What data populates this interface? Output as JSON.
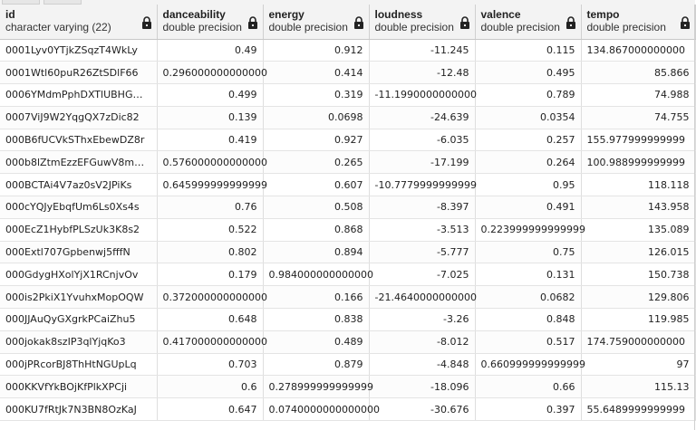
{
  "columns": [
    {
      "name": "id",
      "type": "character varying (22)"
    },
    {
      "name": "danceability",
      "type": "double precision"
    },
    {
      "name": "energy",
      "type": "double precision"
    },
    {
      "name": "loudness",
      "type": "double precision"
    },
    {
      "name": "valence",
      "type": "double precision"
    },
    {
      "name": "tempo",
      "type": "double precision"
    }
  ],
  "rows": [
    [
      "0001Lyv0YTjkZSqzT4WkLy",
      "0.49",
      "0.912",
      "-11.245",
      "0.115",
      "134.867000000000"
    ],
    [
      "0001Wtl60puR26ZtSDlF66",
      "0.296000000000000",
      "0.414",
      "-12.48",
      "0.495",
      "85.866"
    ],
    [
      "0006YMdmPphDXTlUBHG…",
      "0.499",
      "0.319",
      "-11.1990000000000",
      "0.789",
      "74.988"
    ],
    [
      "0007ViJ9W2YqgQX7zDic82",
      "0.139",
      "0.0698",
      "-24.639",
      "0.0354",
      "74.755"
    ],
    [
      "000B6fUCVkSThxEbewDZ8r",
      "0.419",
      "0.927",
      "-6.035",
      "0.257",
      "155.977999999999"
    ],
    [
      "000b8lZtmEzzEFGuwV8m…",
      "0.576000000000000",
      "0.265",
      "-17.199",
      "0.264",
      "100.988999999999"
    ],
    [
      "000BCTAi4V7az0sV2JPiKs",
      "0.645999999999999",
      "0.607",
      "-10.7779999999999",
      "0.95",
      "118.118"
    ],
    [
      "000cYQJyEbqfUm6Ls0Xs4s",
      "0.76",
      "0.508",
      "-8.397",
      "0.491",
      "143.958"
    ],
    [
      "000EcZ1HybfPLSzUk3K8s2",
      "0.522",
      "0.868",
      "-3.513",
      "0.223999999999999",
      "135.089"
    ],
    [
      "000Extl707Gpbenwj5fffN",
      "0.802",
      "0.894",
      "-5.777",
      "0.75",
      "126.015"
    ],
    [
      "000GdygHXolYjX1RCnjvOv",
      "0.179",
      "0.984000000000000",
      "-7.025",
      "0.131",
      "150.738"
    ],
    [
      "000is2PkiX1YvuhxMopOQW",
      "0.372000000000000",
      "0.166",
      "-21.4640000000000",
      "0.0682",
      "129.806"
    ],
    [
      "000JJAuQyGXgrkPCaiZhu5",
      "0.648",
      "0.838",
      "-3.26",
      "0.848",
      "119.985"
    ],
    [
      "000jokak8szIP3qlYjqKo3",
      "0.417000000000000",
      "0.489",
      "-8.012",
      "0.517",
      "174.759000000000"
    ],
    [
      "000jPRcorBJ8ThHtNGUpLq",
      "0.703",
      "0.879",
      "-4.848",
      "0.660999999999999",
      "97"
    ],
    [
      "000KKVfYkBOjKfPlkXPCji",
      "0.6",
      "0.278999999999999",
      "-18.096",
      "0.66",
      "115.13"
    ],
    [
      "000KU7fRtJk7N3BN8OzKaJ",
      "0.647",
      "0.0740000000000000",
      "-30.676",
      "0.397",
      "55.6489999999999"
    ]
  ]
}
